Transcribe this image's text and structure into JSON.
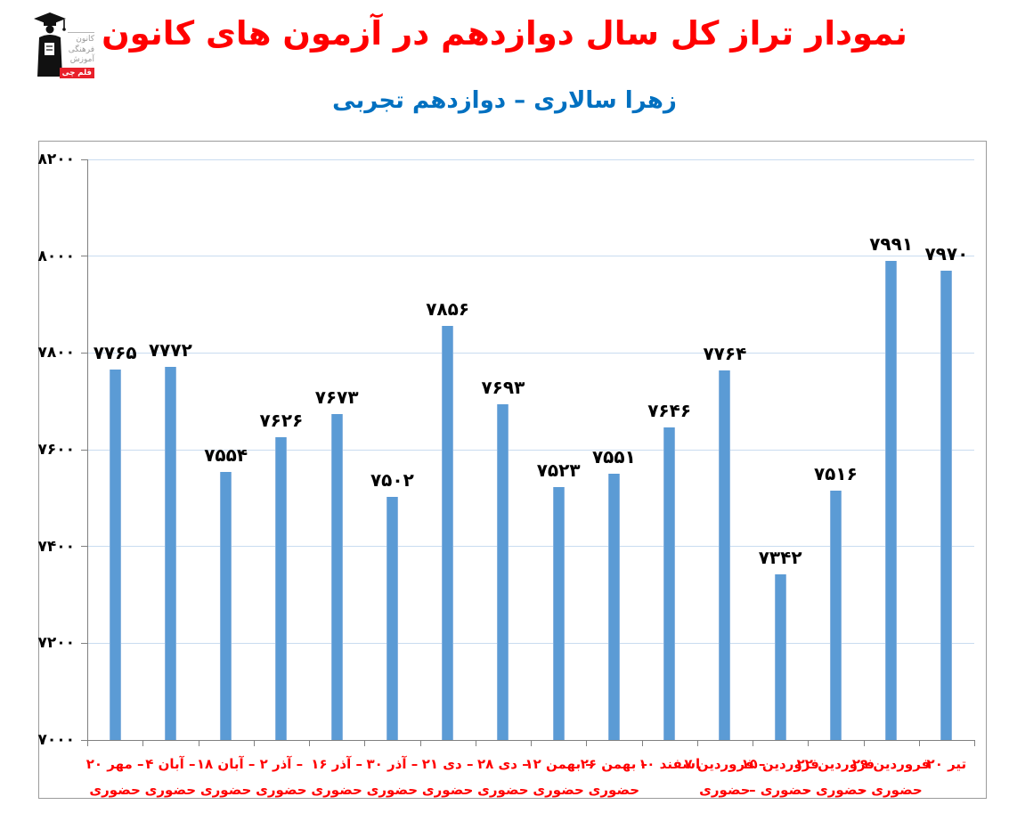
{
  "header": {
    "title": "نمودار تراز کل سال دوازدهم در آزمون های کانون",
    "subtitle": "زهرا سالاری – دوازدهم تجربی"
  },
  "logo": {
    "org_lines": [
      "کانون",
      "فرهنگی",
      "آموزش"
    ],
    "brand": "قلم چی",
    "brand_bg": "#e8202a"
  },
  "chart_data": {
    "type": "bar",
    "title": "نمودار تراز کل سال دوازدهم در آزمون های کانون",
    "subtitle": "زهرا سالاری – دوازدهم تجربی",
    "categories": [
      "۲۰ مهر – حضوری",
      "۴ آبان – حضوری",
      "۱۸ آبان – حضوری",
      "۲ آذر – حضوری",
      "۱۶ آذر – حضوری",
      "۳۰ آذر – حضوری",
      "۲۱ دی – حضوری",
      "۲۸ دی – حضوری",
      "۱۲ بهمن – حضوری",
      "۲۶ بهمن – حضوری",
      "۱۰ اسفند",
      "۷ فروردین – حضوری",
      "۱۵ فروردین – حضوری",
      "۲۲ فروردین – حضوری",
      "۲۹ فروردین – حضوری",
      "۲۰ تیر"
    ],
    "category_lines": [
      [
        "۲۰ مهر –",
        "حضوری"
      ],
      [
        "۴ آبان –",
        "حضوری"
      ],
      [
        "۱۸ آبان –",
        "حضوری"
      ],
      [
        "۲ آذر –",
        "حضوری"
      ],
      [
        "۱۶ آذر –",
        "حضوری"
      ],
      [
        "۳۰ آذر –",
        "حضوری"
      ],
      [
        "۲۱ دی –",
        "حضوری"
      ],
      [
        "۲۸ دی –",
        "حضوری"
      ],
      [
        "۱۲ بهمن –",
        "حضوری"
      ],
      [
        "۲۶ بهمن –",
        "حضوری"
      ],
      [
        "۱۰ اسفند",
        ""
      ],
      [
        "۷ فروردین –",
        "حضوری"
      ],
      [
        "۱۵ فروردین",
        "– حضوری"
      ],
      [
        "۲۲ فروردین",
        "– حضوری"
      ],
      [
        "۲۹ فروردین",
        "– حضوری"
      ],
      [
        "۲۰ تیر",
        ""
      ]
    ],
    "values": [
      7765,
      7772,
      7554,
      7626,
      7673,
      7502,
      7856,
      7693,
      7523,
      7551,
      7646,
      7764,
      7342,
      7516,
      7991,
      7970
    ],
    "ylim": [
      7000,
      8200
    ],
    "yticks": [
      7000,
      7200,
      7400,
      7600,
      7800,
      8000,
      8200
    ],
    "grid": true,
    "legend": false,
    "digit_style": "persian",
    "xlabel": "",
    "ylabel": "",
    "colors": {
      "bar": "#5b9bd5",
      "gridline": "#c9dcf0",
      "axis": "#808080",
      "xtick_label": "#ff0000",
      "value_label": "#000000",
      "ytick_label": "#000000",
      "title": "#ff0000",
      "subtitle": "#0070c0"
    }
  }
}
